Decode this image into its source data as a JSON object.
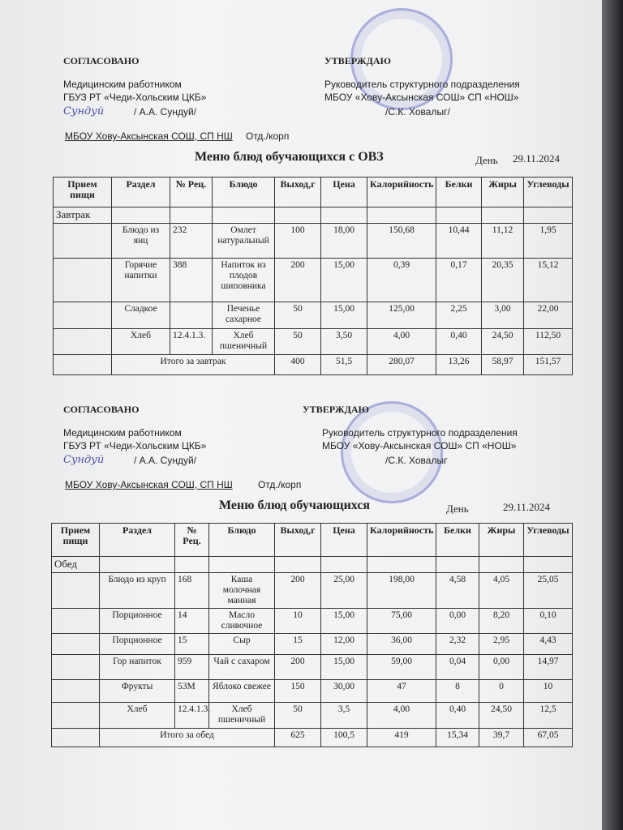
{
  "sections": [
    {
      "agreed": "СОГЛАСОВАНО",
      "med_worker": "Медицинским работником",
      "hospital": "ГБУЗ РТ «Чеди-Хольским ЦКБ»",
      "med_sign": "/ А.А. Сундуй/",
      "med_signature": "Сундуй",
      "approve": "УТВЕРЖДАЮ",
      "head_title": "Руководитель структурного подразделения",
      "school": "МБОУ «Хову-Аксынская СОШ» СП «НОШ»",
      "head_sign": "/С.К. Ховалыг/",
      "org": "МБОУ Хову-Аксынская СОШ, СП НШ",
      "dept": "Отд./корп",
      "title": "Меню блюд обучающихся с ОВЗ",
      "day_label": "День",
      "date": "29.11.2024",
      "meal": "Завтрак",
      "rows": [
        [
          "Блюдо из яиц",
          "232",
          "Омлет натуральный",
          "100",
          "18,00",
          "150,68",
          "10,44",
          "11,12",
          "1,95"
        ],
        [
          "Горячие напитки",
          "388",
          "Напиток из плодов шиповника",
          "200",
          "15,00",
          "0,39",
          "0,17",
          "20,35",
          "15,12"
        ],
        [
          "Сладкое",
          "",
          "Печенье сахарное",
          "50",
          "15,00",
          "125,00",
          "2,25",
          "3,00",
          "22,00"
        ],
        [
          "Хлеб",
          "12.4.1.3.",
          "Хлеб пшеничный",
          "50",
          "3,50",
          "4,00",
          "0,40",
          "24,50",
          "112,50"
        ]
      ],
      "total": [
        "Итого за завтрак",
        "400",
        "51,5",
        "280,07",
        "13,26",
        "58,97",
        "151,57"
      ]
    },
    {
      "agreed": "СОГЛАСОВАНО",
      "med_worker": "Медицинским работником",
      "hospital": "ГБУЗ РТ «Чеди-Хольским ЦКБ»",
      "med_sign": "/ А.А. Сундуй/",
      "med_signature": "Сундуй",
      "approve": "УТВЕРЖДАЮ",
      "head_title": "Руководитель структурного подразделения",
      "school": "МБОУ «Хову-Аксынская СОШ» СП «НОШ»",
      "head_sign": "/С.К. Ховалыг",
      "org": "МБОУ Хову-Аксынская СОШ, СП НШ",
      "dept": "Отд./корп",
      "title": "Меню блюд обучающихся",
      "day_label": "День",
      "date": "29.11.2024",
      "meal": "Обед",
      "rows": [
        [
          "Блюдо из круп",
          "168",
          "Каша молочная манная",
          "200",
          "25,00",
          "198,00",
          "4,58",
          "4,05",
          "25,05"
        ],
        [
          "Порционное",
          "14",
          "Масло сливочное",
          "10",
          "15,00",
          "75,00",
          "0,00",
          "8,20",
          "0,10"
        ],
        [
          "Порционное",
          "15",
          "Сыр",
          "15",
          "12,00",
          "36,00",
          "2,32",
          "2,95",
          "4,43"
        ],
        [
          "Гор напиток",
          "959",
          "Чай с сахаром",
          "200",
          "15,00",
          "59,00",
          "0,04",
          "0,00",
          "14,97"
        ],
        [
          "Фрукты",
          "53М",
          "Яблоко свежее",
          "150",
          "30,00",
          "47",
          "8",
          "0",
          "10"
        ],
        [
          "Хлеб",
          "12.4.1.3.",
          "Хлеб пшеничный",
          "50",
          "3,5",
          "4,00",
          "0,40",
          "24,50",
          "12,5"
        ]
      ],
      "total": [
        "Итого за обед",
        "625",
        "100,5",
        "419",
        "15,34",
        "39,7",
        "67,05"
      ]
    }
  ],
  "columns": [
    "Прием пищи",
    "Раздел",
    "№ Рец.",
    "Блюдо",
    "Выход,г",
    "Цена",
    "Калорийность",
    "Белки",
    "Жиры",
    "Углеводы"
  ],
  "colors": {
    "stamp": "#505abe",
    "ink": "#222222"
  }
}
